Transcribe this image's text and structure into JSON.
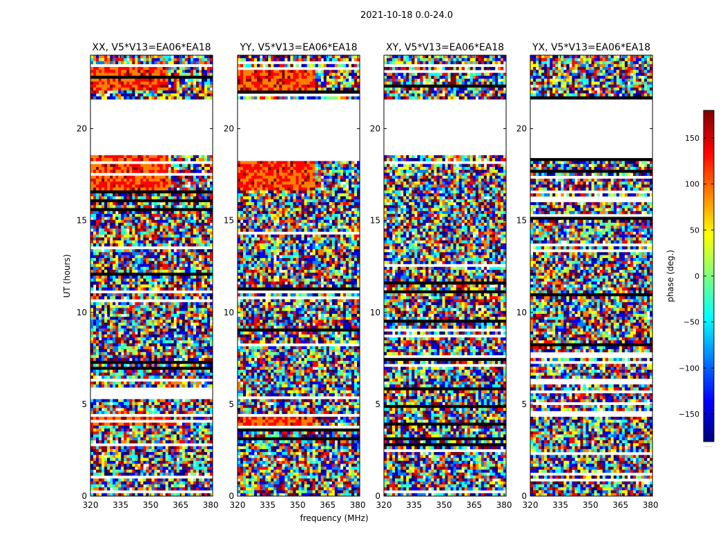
{
  "figure": {
    "suptitle": "2021-10-18 0.0-24.0",
    "xlabel": "frequency (MHz)",
    "ylabel": "UT (hours)",
    "colorbar_label": "phase (deg.)",
    "colorbar_extra": "....."
  },
  "chart_data": {
    "type": "heatmap",
    "x_range": [
      320,
      381
    ],
    "y_range": [
      0,
      24
    ],
    "x_ticks": [
      320,
      335,
      350,
      365,
      380
    ],
    "y_ticks": [
      0,
      5,
      10,
      15,
      20
    ],
    "colorbar_range": [
      -180,
      180
    ],
    "colorbar_ticks": [
      -150,
      -100,
      -50,
      0,
      50,
      100,
      150
    ],
    "colormap": "jet",
    "gaps_hours": [
      [
        18.5,
        21.6
      ]
    ],
    "panels": [
      {
        "title": "XX, V5*V13=EA06*EA18",
        "coherent": true
      },
      {
        "title": "YY, V5*V13=EA06*EA18",
        "coherent": true
      },
      {
        "title": "XY, V5*V13=EA06*EA18",
        "coherent": false
      },
      {
        "title": "YX, V5*V13=EA06*EA18",
        "coherent": false
      }
    ]
  },
  "colors": {
    "axis": "#000000",
    "background": "#ffffff",
    "jet": [
      "#00007f",
      "#0000ff",
      "#007fff",
      "#00ffff",
      "#7fff7f",
      "#ffff00",
      "#ff7f00",
      "#ff0000",
      "#7f0000"
    ]
  }
}
